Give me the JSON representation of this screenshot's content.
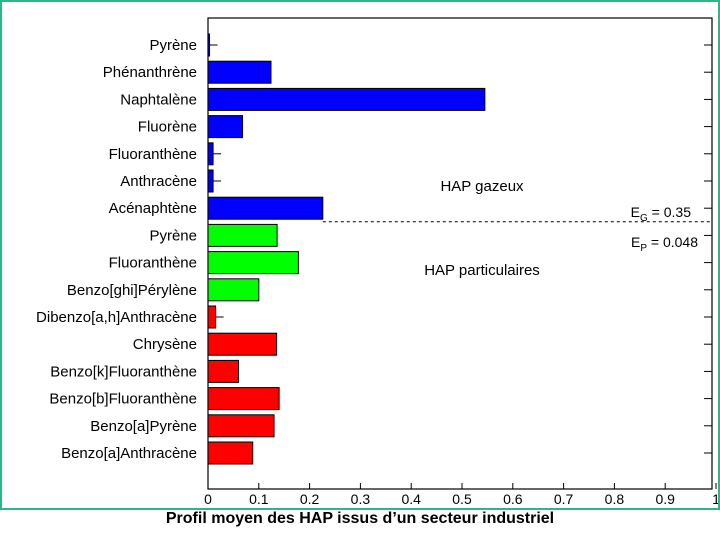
{
  "caption": "Profil moyen des HAP issus d’un secteur industriel",
  "chart_data": {
    "type": "bar",
    "orientation": "horizontal",
    "categories": [
      "Pyrène",
      "Phénanthrène",
      "Naphtalène",
      "Fluorène",
      "Fluoranthène",
      "Anthracène",
      "Acénaphtène",
      "Pyrène",
      "Fluoranthène",
      "Benzo[ghi]Pérylène",
      "Dibenzo[a,h]Anthracène",
      "Chrysène",
      "Benzo[k]Fluoranthène",
      "Benzo[b]Fluoranthène",
      "Benzo[a]Pyrène",
      "Benzo[a]Anthracène"
    ],
    "values": [
      0.003,
      0.124,
      0.545,
      0.068,
      0.01,
      0.01,
      0.226,
      0.136,
      0.178,
      0.1,
      0.015,
      0.135,
      0.06,
      0.14,
      0.13,
      0.088
    ],
    "bar_colors": [
      "#0000ff",
      "#0000ff",
      "#0000ff",
      "#0000ff",
      "#0000ff",
      "#0000ff",
      "#0000ff",
      "#00ff00",
      "#00ff00",
      "#00ff00",
      "#ff0000",
      "#ff0000",
      "#ff0000",
      "#ff0000",
      "#ff0000",
      "#ff0000"
    ],
    "x_ticks": [
      "0",
      "0.1",
      "0.2",
      "0.3",
      "0.4",
      "0.5",
      "0.6",
      "0.7",
      "0.8",
      "0.9",
      "1"
    ],
    "xlim": [
      0,
      1
    ],
    "grid": false,
    "annotations": {
      "gas_label": "HAP gazeux",
      "particle_label": "HAP particulaires",
      "eg_text": "E",
      "eg_sub": "G",
      "eg_value": " = 0.35",
      "ep_text": "E",
      "ep_sub": "P",
      "ep_value": " = 0.048"
    },
    "separator_after_index": 6
  }
}
